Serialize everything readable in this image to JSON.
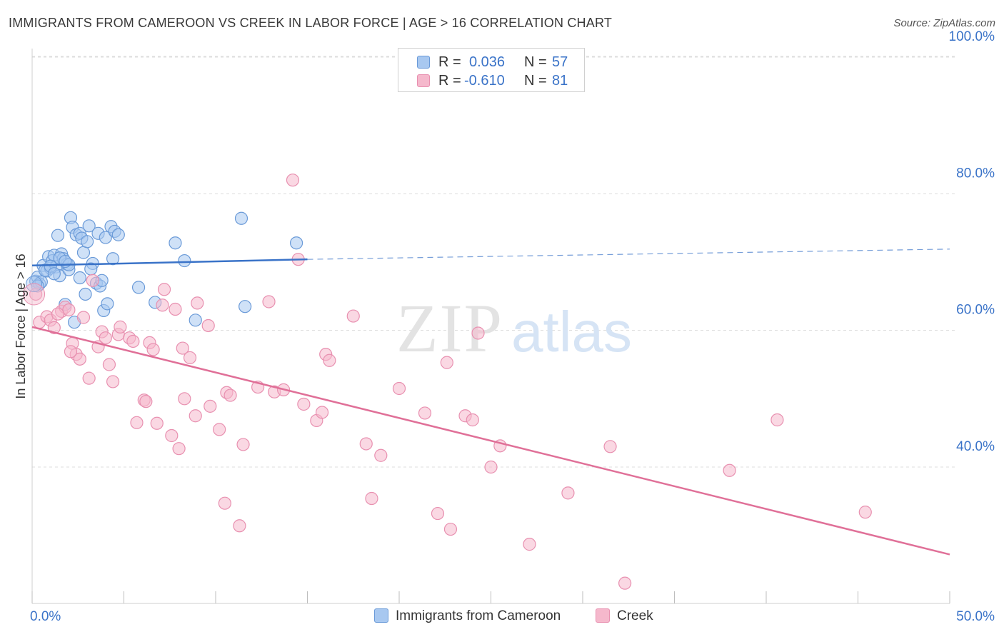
{
  "header": {
    "title": "IMMIGRANTS FROM CAMEROON VS CREEK IN LABOR FORCE | AGE > 16 CORRELATION CHART",
    "source": "Source: ZipAtlas.com"
  },
  "legend": {
    "rows": [
      {
        "r_label": "R =",
        "r_value": "0.036",
        "n_label": "N =",
        "n_value": "57"
      },
      {
        "r_label": "R =",
        "r_value": "-0.610",
        "n_label": "N =",
        "n_value": "81"
      }
    ]
  },
  "watermark": {
    "zip": "ZIP",
    "atlas": "atlas"
  },
  "colors": {
    "blue": "#3a73c8",
    "blue_fill": "#a8c8f0",
    "blue_stroke": "#6a9ad8",
    "pink": "#e07098",
    "pink_fill": "#f5b8cc",
    "pink_stroke": "#e890b0",
    "grid": "#dcdcdc",
    "axis_text": "#3a73c8"
  },
  "chart_data": {
    "type": "scatter",
    "title": "IMMIGRANTS FROM CAMEROON VS CREEK IN LABOR FORCE | AGE > 16 CORRELATION CHART",
    "ylabel": "In Labor Force | Age > 16",
    "xlabel": "",
    "xlim": [
      0,
      50
    ],
    "ylim": [
      23,
      102
    ],
    "x_tick_labels": [
      "0.0%",
      "50.0%"
    ],
    "y_ticks": [
      40,
      60,
      80,
      100
    ],
    "y_tick_labels": [
      "40.0%",
      "60.0%",
      "80.0%",
      "100.0%"
    ],
    "grid": true,
    "legend_position": "top-center",
    "series": [
      {
        "name": "Immigrants from Cameroon",
        "color": "#3a73c8",
        "trend": {
          "x": [
            0,
            15
          ],
          "y": [
            69.5,
            70.4
          ],
          "dashed_to": [
            50,
            71.9
          ]
        },
        "points": [
          [
            0.2,
            67.2
          ],
          [
            0.3,
            67.8
          ],
          [
            0.4,
            66.8
          ],
          [
            0.6,
            69.5
          ],
          [
            0.8,
            68.7
          ],
          [
            0.9,
            70.8
          ],
          [
            1.0,
            69.1
          ],
          [
            1.1,
            70.2
          ],
          [
            1.2,
            71.0
          ],
          [
            1.3,
            69.3
          ],
          [
            1.4,
            73.9
          ],
          [
            1.5,
            68.0
          ],
          [
            1.6,
            71.2
          ],
          [
            1.7,
            70.5
          ],
          [
            1.8,
            63.8
          ],
          [
            1.9,
            69.7
          ],
          [
            2.0,
            68.9
          ],
          [
            2.1,
            76.5
          ],
          [
            2.2,
            75.1
          ],
          [
            2.3,
            61.2
          ],
          [
            2.4,
            74.0
          ],
          [
            2.6,
            74.2
          ],
          [
            2.7,
            73.5
          ],
          [
            2.8,
            71.4
          ],
          [
            2.9,
            65.3
          ],
          [
            3.0,
            73.0
          ],
          [
            3.1,
            75.3
          ],
          [
            3.3,
            69.8
          ],
          [
            3.5,
            66.9
          ],
          [
            3.6,
            74.2
          ],
          [
            3.7,
            66.5
          ],
          [
            3.8,
            67.3
          ],
          [
            3.9,
            62.9
          ],
          [
            4.0,
            73.6
          ],
          [
            4.1,
            63.9
          ],
          [
            4.3,
            75.2
          ],
          [
            4.4,
            70.5
          ],
          [
            4.5,
            74.5
          ],
          [
            4.7,
            74.0
          ],
          [
            5.8,
            66.3
          ],
          [
            6.7,
            64.1
          ],
          [
            7.8,
            72.8
          ],
          [
            8.3,
            70.2
          ],
          [
            8.9,
            61.5
          ],
          [
            11.4,
            76.4
          ],
          [
            11.6,
            63.5
          ],
          [
            14.4,
            72.8
          ],
          [
            0.5,
            67.1
          ],
          [
            0.7,
            68.8
          ],
          [
            1.0,
            69.4
          ],
          [
            1.5,
            70.6
          ],
          [
            2.0,
            69.6
          ],
          [
            0.3,
            66.5
          ],
          [
            1.2,
            68.3
          ],
          [
            2.6,
            67.7
          ],
          [
            3.2,
            69.0
          ],
          [
            1.8,
            70.1
          ]
        ]
      },
      {
        "name": "Creek",
        "color": "#e07098",
        "trend": {
          "x": [
            0,
            50
          ],
          "y": [
            60.5,
            27.2
          ]
        },
        "points": [
          [
            0.2,
            65.3
          ],
          [
            0.4,
            61.2
          ],
          [
            0.8,
            62.0
          ],
          [
            1.0,
            61.5
          ],
          [
            1.2,
            60.4
          ],
          [
            1.6,
            62.8
          ],
          [
            1.8,
            63.4
          ],
          [
            2.0,
            63.0
          ],
          [
            2.2,
            58.1
          ],
          [
            2.4,
            56.5
          ],
          [
            2.6,
            55.8
          ],
          [
            2.8,
            61.9
          ],
          [
            3.1,
            53.0
          ],
          [
            3.3,
            67.3
          ],
          [
            3.6,
            57.6
          ],
          [
            3.8,
            59.8
          ],
          [
            4.0,
            58.9
          ],
          [
            4.2,
            55.0
          ],
          [
            4.4,
            52.5
          ],
          [
            4.7,
            59.4
          ],
          [
            4.8,
            60.5
          ],
          [
            5.3,
            58.9
          ],
          [
            5.5,
            58.4
          ],
          [
            5.7,
            46.5
          ],
          [
            6.1,
            49.8
          ],
          [
            6.2,
            49.6
          ],
          [
            6.4,
            58.2
          ],
          [
            6.6,
            57.2
          ],
          [
            6.8,
            46.4
          ],
          [
            7.1,
            63.7
          ],
          [
            7.2,
            66.0
          ],
          [
            7.6,
            44.6
          ],
          [
            7.8,
            63.1
          ],
          [
            8.0,
            42.7
          ],
          [
            8.2,
            57.4
          ],
          [
            8.3,
            50.0
          ],
          [
            8.6,
            56.0
          ],
          [
            8.9,
            47.5
          ],
          [
            9.0,
            64.0
          ],
          [
            9.6,
            60.7
          ],
          [
            9.7,
            48.9
          ],
          [
            10.2,
            45.5
          ],
          [
            10.5,
            34.7
          ],
          [
            10.6,
            50.9
          ],
          [
            10.8,
            50.5
          ],
          [
            11.3,
            31.4
          ],
          [
            11.5,
            43.3
          ],
          [
            12.3,
            51.7
          ],
          [
            12.9,
            64.2
          ],
          [
            13.2,
            51.0
          ],
          [
            13.7,
            51.3
          ],
          [
            14.2,
            82.0
          ],
          [
            14.5,
            70.4
          ],
          [
            14.8,
            49.2
          ],
          [
            15.5,
            46.8
          ],
          [
            15.8,
            48.0
          ],
          [
            16.0,
            56.5
          ],
          [
            16.2,
            55.6
          ],
          [
            17.5,
            62.1
          ],
          [
            18.2,
            43.4
          ],
          [
            18.5,
            35.4
          ],
          [
            19.0,
            41.7
          ],
          [
            20.0,
            51.5
          ],
          [
            21.4,
            47.9
          ],
          [
            22.1,
            33.2
          ],
          [
            22.6,
            55.3
          ],
          [
            22.8,
            30.9
          ],
          [
            23.6,
            47.5
          ],
          [
            24.0,
            46.9
          ],
          [
            24.3,
            59.6
          ],
          [
            25.0,
            40.0
          ],
          [
            25.5,
            43.1
          ],
          [
            27.1,
            28.7
          ],
          [
            29.2,
            36.2
          ],
          [
            31.5,
            43.0
          ],
          [
            32.3,
            23.0
          ],
          [
            38.0,
            39.5
          ],
          [
            40.6,
            46.9
          ],
          [
            45.4,
            33.4
          ],
          [
            1.4,
            62.4
          ],
          [
            2.1,
            56.9
          ]
        ]
      }
    ]
  },
  "bottom_legend": {
    "series_1": "Immigrants from Cameroon",
    "series_2": "Creek"
  }
}
